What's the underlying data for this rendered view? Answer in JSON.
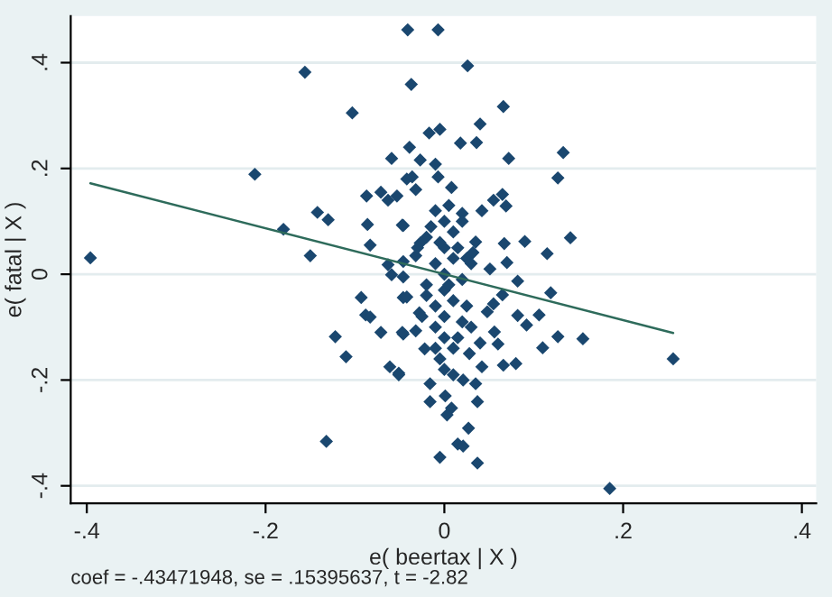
{
  "chart_data": {
    "type": "scatter",
    "xlabel": "e( beertax | X )",
    "ylabel": "e( fatal | X )",
    "annotations": [
      "coef = -.43471948, se = .15395637, t = -2.82"
    ],
    "xlim": [
      -0.418,
      0.416
    ],
    "ylim": [
      -0.433,
      0.488
    ],
    "xticks": [
      {
        "value": -0.4,
        "label": "-.4"
      },
      {
        "value": -0.2,
        "label": "-.2"
      },
      {
        "value": 0,
        "label": "0"
      },
      {
        "value": 0.2,
        "label": ".2"
      },
      {
        "value": 0.4,
        "label": ".4"
      }
    ],
    "yticks": [
      {
        "value": -0.4,
        "label": "-.4"
      },
      {
        "value": -0.2,
        "label": "-.2"
      },
      {
        "value": 0,
        "label": "0"
      },
      {
        "value": 0.2,
        "label": ".2"
      },
      {
        "value": 0.4,
        "label": ".4"
      }
    ],
    "grid": "y",
    "marker": "diamond",
    "series": [
      {
        "color": "#1a476f",
        "x": [
          -0.396,
          -0.212,
          -0.156,
          -0.18,
          -0.15,
          -0.142,
          -0.13,
          -0.103,
          -0.041,
          -0.037,
          -0.017,
          -0.059,
          -0.039,
          -0.027,
          -0.087,
          -0.071,
          -0.053,
          -0.063,
          -0.086,
          -0.083,
          -0.046,
          -0.042,
          -0.036,
          -0.032,
          -0.063,
          -0.046,
          -0.032,
          -0.007,
          0.026,
          0.066,
          0.04,
          -0.005,
          0.018,
          0.036,
          -0.01,
          0.072,
          0.133,
          0.127,
          -0.007,
          0.008,
          0.055,
          0.065,
          0.069,
          0.042,
          0.02,
          -0.047,
          0.09,
          0.067,
          0.07,
          0.115,
          0.141,
          0.051,
          0.082,
          0.032,
          0.035,
          -0.027,
          -0.046,
          0.119,
          0.082,
          0.106,
          0.092,
          0.127,
          0.155,
          0.256,
          0.11,
          0.08,
          0.066,
          0.056,
          0.06,
          0.04,
          0.042,
          0.035,
          0.037,
          0.027,
          0.015,
          0.021,
          0.037,
          -0.005,
          0.185,
          0.001,
          0.008,
          0.021,
          0.003,
          0.028,
          0.048,
          0.065,
          0.055,
          -0.046,
          -0.046,
          -0.051,
          0.025,
          -0.093,
          -0.088,
          -0.083,
          -0.071,
          -0.047,
          -0.122,
          -0.11,
          -0.061,
          -0.051,
          -0.132,
          -0.042,
          -0.028,
          -0.059,
          -0.016,
          -0.016,
          -0.032,
          -0.022,
          -0.01,
          0.0,
          0.01,
          -0.02,
          0.0,
          0.01,
          -0.01,
          0.0,
          0.02,
          -0.02,
          0.0,
          0.01,
          -0.01,
          0.0,
          0.02,
          -0.01,
          0.0,
          0.01,
          -0.005,
          0.0,
          0.01,
          -0.02,
          0.03,
          -0.03,
          0.02,
          0.005,
          -0.015,
          0.025,
          -0.025,
          0.015,
          0.03,
          -0.005,
          0.015,
          -0.01,
          0.005
        ],
        "values": [
          0.031,
          0.189,
          0.382,
          0.085,
          0.035,
          0.117,
          0.103,
          0.305,
          0.462,
          0.359,
          0.267,
          0.219,
          0.24,
          0.216,
          0.148,
          0.155,
          0.148,
          0.14,
          0.094,
          0.055,
          0.092,
          0.18,
          0.184,
          0.16,
          0.018,
          0.024,
          0.035,
          0.462,
          0.394,
          0.317,
          0.284,
          0.274,
          0.248,
          0.249,
          0.208,
          0.219,
          0.23,
          0.182,
          0.184,
          0.164,
          0.14,
          0.151,
          0.129,
          0.12,
          0.115,
          0.093,
          0.062,
          0.058,
          0.022,
          0.039,
          0.069,
          0.01,
          -0.013,
          0.041,
          0.061,
          0.059,
          -0.005,
          -0.035,
          -0.078,
          -0.077,
          -0.096,
          -0.118,
          -0.122,
          -0.16,
          -0.139,
          -0.169,
          -0.172,
          -0.109,
          -0.132,
          -0.13,
          -0.175,
          -0.207,
          -0.241,
          -0.291,
          -0.321,
          -0.325,
          -0.357,
          -0.346,
          -0.405,
          -0.23,
          -0.253,
          -0.2,
          -0.266,
          -0.15,
          -0.071,
          -0.039,
          -0.056,
          -0.044,
          -0.113,
          -0.187,
          0.03,
          -0.044,
          -0.077,
          -0.081,
          -0.11,
          -0.11,
          -0.118,
          -0.156,
          -0.175,
          -0.19,
          -0.316,
          -0.043,
          -0.073,
          -0.001,
          -0.207,
          -0.241,
          -0.107,
          -0.141,
          0.12,
          0.1,
          0.08,
          0.07,
          0.05,
          0.03,
          0.02,
          0.0,
          -0.01,
          -0.02,
          -0.03,
          -0.05,
          -0.06,
          -0.08,
          -0.09,
          -0.1,
          -0.12,
          -0.14,
          -0.16,
          -0.18,
          -0.19,
          -0.04,
          0.02,
          0.05,
          0.1,
          0.13,
          0.09,
          -0.06,
          -0.08,
          -0.12,
          -0.1,
          0.06,
          0.05,
          -0.14,
          -0.02
        ]
      },
      {
        "type": "line",
        "marker": "none",
        "color": "#2e6b5b",
        "x": [
          -0.396,
          0.256
        ],
        "values": [
          0.172,
          -0.111
        ]
      }
    ]
  }
}
